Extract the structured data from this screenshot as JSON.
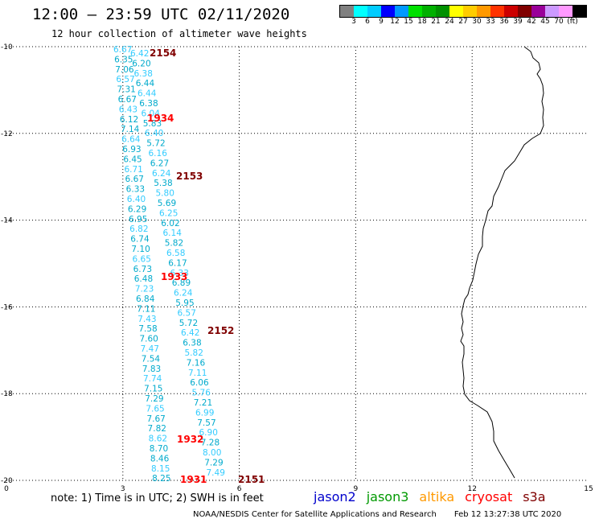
{
  "header": {
    "title": "12:00 – 23:59 UTC 02/11/2020",
    "subtitle": "12 hour collection of altimeter wave heights"
  },
  "legend": {
    "colors": [
      "#808080",
      "#00ffff",
      "#00ccff",
      "#0000ff",
      "#0099ff",
      "#00e000",
      "#00b000",
      "#009000",
      "#ffff00",
      "#ffcc00",
      "#ff9900",
      "#ff3300",
      "#cc0000",
      "#800000",
      "#990099",
      "#cc99ff",
      "#ff99ff",
      "#000000"
    ],
    "labels": [
      "3",
      "6",
      "9",
      "12",
      "15",
      "18",
      "21",
      "24",
      "27",
      "30",
      "33",
      "36",
      "39",
      "42",
      "45",
      "70",
      "(ft)"
    ]
  },
  "map": {
    "x_ticks": [
      "0",
      "3",
      "6",
      "9",
      "12",
      "15"
    ],
    "y_ticks": [
      "-10",
      "-12",
      "-14",
      "-16",
      "-18",
      "-20"
    ],
    "track_colors": {
      "jason3_light": "#33ccff",
      "jason3_dark": "#00aacc",
      "time_dark": "#800000",
      "time_red": "#ff0000"
    },
    "track_left": [
      "6.67",
      "6.35",
      "7.06",
      "6.57",
      "7.31",
      "6.67",
      "6.43",
      "6.12",
      "7.14",
      "6.64",
      "6.93",
      "6.45",
      "6.71",
      "6.67",
      "6.33",
      "6.40",
      "6.29",
      "6.95",
      "6.82",
      "6.74",
      "7.10",
      "6.65",
      "6.73",
      "6.48",
      "7.23",
      "6.84",
      "7.11",
      "7.43",
      "7.58",
      "7.60",
      "7.47",
      "7.54",
      "7.83",
      "7.74",
      "7.15",
      "7.29",
      "7.65",
      "7.67",
      "7.82",
      "8.62",
      "8.70",
      "8.46",
      "8.15",
      "8.25"
    ],
    "track_right": [
      "6.42",
      "6.20",
      "6.38",
      "6.44",
      "6.44",
      "6.38",
      "6.04",
      "5.83",
      "6.40",
      "5.72",
      "6.16",
      "6.27",
      "6.24",
      "5.38",
      "5.80",
      "5.69",
      "6.25",
      "6.02",
      "6.14",
      "5.82",
      "6.58",
      "6.17",
      "6.33",
      "6.89",
      "6.24",
      "5.95",
      "6.57",
      "5.72",
      "6.42",
      "6.38",
      "5.82",
      "7.16",
      "7.11",
      "6.06",
      "5.76",
      "7.21",
      "6.99",
      "7.57",
      "6.90",
      "7.28",
      "8.00",
      "7.29",
      "7.49"
    ],
    "time_labels": [
      "2154",
      "1934",
      "2153",
      "1933",
      "2152",
      "1932",
      "1931",
      "2151"
    ]
  },
  "footer": {
    "note": "note: 1) Time is in UTC; 2) SWH is in feet",
    "satellites": [
      {
        "name": "jason2",
        "color": "#0000cc"
      },
      {
        "name": "jason3",
        "color": "#009900"
      },
      {
        "name": "altika",
        "color": "#ff9900"
      },
      {
        "name": "cryosat",
        "color": "#ff0000"
      },
      {
        "name": "s3a",
        "color": "#800000"
      }
    ],
    "credit": "NOAA/NESDIS Center for Satellite Applications and Research",
    "timestamp": "Feb 12 13:27:38 UTC 2020"
  }
}
